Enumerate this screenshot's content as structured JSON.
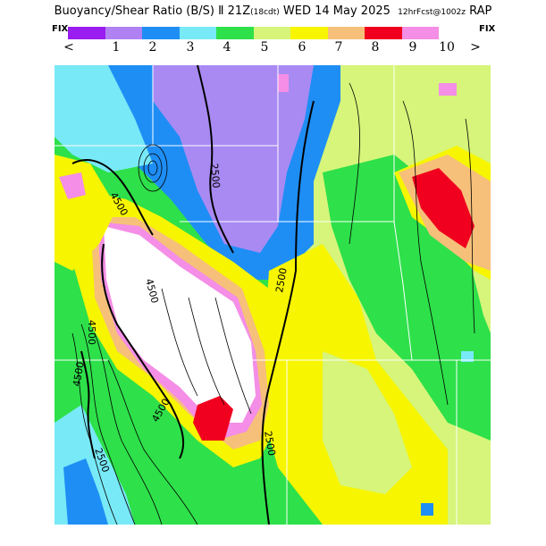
{
  "title": {
    "main": "Buoyancy/Shear Ratio (B/S) ",
    "run": "21Z",
    "fcst_hour": "(18cdt)",
    "valid": " WED 14 May 2025",
    "fcst": "12hrFcst@1002z",
    "model": "RAP"
  },
  "nav": {
    "fix_left": "FIX",
    "fix_right": "FIX",
    "prev": "<",
    "next": ">"
  },
  "legend": {
    "colors": [
      "#9a1cf0",
      "#b081f2",
      "#1e8ef5",
      "#78e9f7",
      "#2ee04a",
      "#d6f57a",
      "#f7f500",
      "#f6c07a",
      "#f0001e",
      "#f48ee6"
    ],
    "labels": [
      "1",
      "2",
      "3",
      "4",
      "5",
      "6",
      "7",
      "8",
      "9",
      "10"
    ]
  },
  "map": {
    "contour_labels": [
      "4500",
      "2500",
      "4500",
      "2500",
      "4500",
      "4500",
      "4500",
      "2500",
      "2500"
    ],
    "palette": {
      "purple": "#a98af2",
      "blue": "#1e8ef5",
      "cyan": "#78e9f7",
      "green": "#2ee04a",
      "lime": "#d6f57a",
      "yellow": "#f7f500",
      "orange": "#f6c07a",
      "red": "#f0001e",
      "pink": "#f48ee6",
      "white": "#ffffff"
    }
  }
}
